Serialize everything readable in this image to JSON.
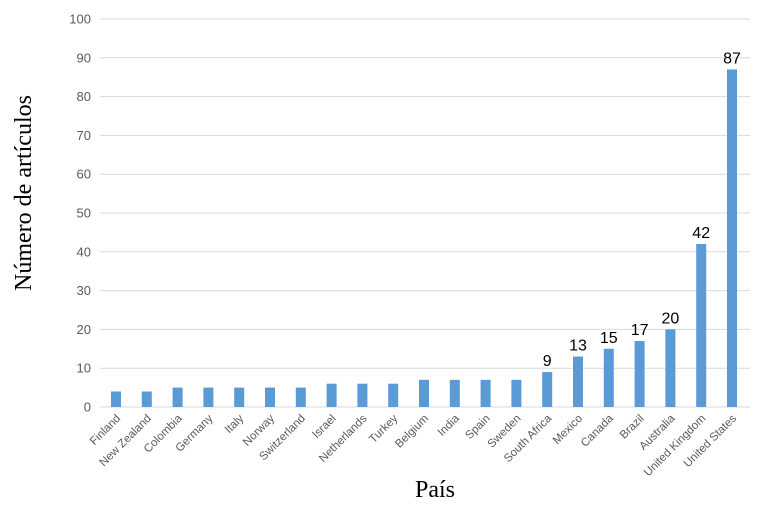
{
  "chart_data": {
    "type": "bar",
    "title": "",
    "xlabel": "País",
    "ylabel": "Número de artículos",
    "ylim": [
      0,
      100
    ],
    "yticks": [
      0,
      10,
      20,
      30,
      40,
      50,
      60,
      70,
      80,
      90,
      100
    ],
    "grid": true,
    "legend": "none",
    "bar_color": "#5b9bd5",
    "categories": [
      "Finland",
      "New Zealand",
      "Colombia",
      "Germany",
      "Italy",
      "Norway",
      "Switzerland",
      "Israel",
      "Netherlands",
      "Turkey",
      "Belgium",
      "India",
      "Spain",
      "Sweden",
      "South Africa",
      "Mexico",
      "Canada",
      "Brazil",
      "Australia",
      "United Kingdom",
      "United States"
    ],
    "values": [
      4,
      4,
      5,
      5,
      5,
      5,
      5,
      6,
      6,
      6,
      7,
      7,
      7,
      7,
      9,
      13,
      15,
      17,
      20,
      42,
      87
    ],
    "data_labels": [
      null,
      null,
      null,
      null,
      null,
      null,
      null,
      null,
      null,
      null,
      null,
      null,
      null,
      null,
      "9",
      "13",
      "15",
      "17",
      "20",
      "42",
      "87"
    ]
  }
}
